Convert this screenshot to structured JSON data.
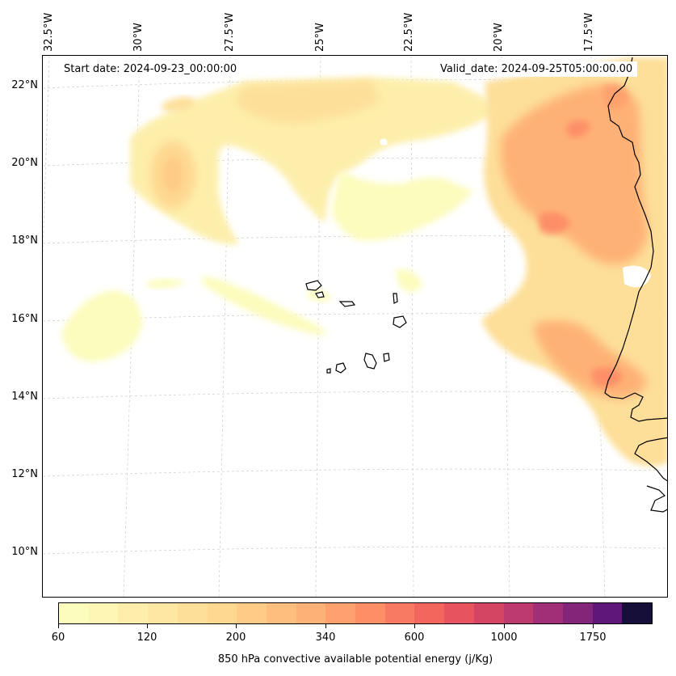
{
  "map": {
    "start_date_text": "Start date: 2024-09-23_00:00:00",
    "valid_date_text": "Valid_date: 2024-09-25T05:00:00.00",
    "longitude_labels": [
      "32.5°W",
      "30°W",
      "27.5°W",
      "25°W",
      "22.5°W",
      "20°W",
      "17.5°W"
    ],
    "latitude_labels": [
      "22°N",
      "20°N",
      "18°N",
      "16°N",
      "14°N",
      "12°N",
      "10°N"
    ],
    "coastline_color": "#000000",
    "gridline_color": "#cccccc"
  },
  "colorbar": {
    "title": "850 hPa convective available potential energy (j/Kg)",
    "tick_labels": [
      "60",
      "120",
      "200",
      "340",
      "600",
      "1000",
      "1750"
    ],
    "colors": [
      "#fcfcbd",
      "#fdf6b4",
      "#fdefab",
      "#fde7a2",
      "#fddf99",
      "#fed790",
      "#fecc87",
      "#febf7e",
      "#feb176",
      "#fea16e",
      "#fd8f67",
      "#f97a62",
      "#f2665d",
      "#e7535e",
      "#d44564",
      "#bc3a6e",
      "#a12f77",
      "#832679",
      "#5f187a",
      "#160f3a"
    ]
  }
}
